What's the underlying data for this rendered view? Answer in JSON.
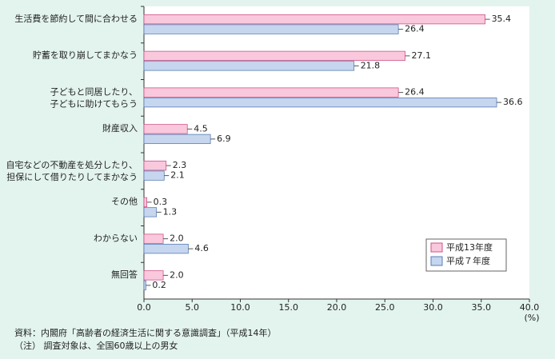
{
  "chart_data": {
    "type": "hbar",
    "categories": [
      "生活費を節約して間に合わせる",
      "貯蓄を取り崩してまかなう",
      [
        "子どもと同居したり、",
        "子どもに助けてもらう"
      ],
      "財産収入",
      [
        "自宅などの不動産を処分したり、",
        "担保にして借りたりしてまかなう"
      ],
      "その他",
      "わからない",
      "無回答"
    ],
    "series": [
      {
        "name": "平成13年度",
        "color": "#fac8dc",
        "edge": "#cc5588",
        "values": [
          35.4,
          27.1,
          26.4,
          4.5,
          2.3,
          0.3,
          2.0,
          2.0
        ],
        "value_labels": [
          "35.4",
          "27.1",
          "26.4",
          "4.5",
          "2.3",
          "0.3",
          "2.0",
          "2.0"
        ]
      },
      {
        "name": "平成７年度",
        "color": "#c6d6ee",
        "edge": "#5a7fb5",
        "values": [
          26.4,
          21.8,
          36.6,
          6.9,
          2.1,
          1.3,
          4.6,
          0.2
        ],
        "value_labels": [
          "26.4",
          "21.8",
          "36.6",
          "6.9",
          "2.1",
          "1.3",
          "4.6",
          "0.2"
        ]
      }
    ],
    "xlim": [
      0,
      40
    ],
    "xticks": [
      {
        "value": 0,
        "label": "0.0"
      },
      {
        "value": 5,
        "label": "5.0"
      },
      {
        "value": 10,
        "label": "10.0"
      },
      {
        "value": 15,
        "label": "15.0"
      },
      {
        "value": 20,
        "label": "20.0"
      },
      {
        "value": 25,
        "label": "25.0"
      },
      {
        "value": 30,
        "label": "30.0"
      },
      {
        "value": 35,
        "label": "35.0"
      },
      {
        "value": 40,
        "label": "40.0"
      }
    ],
    "x_unit": "(%)",
    "legend": "lower-right",
    "notes": [
      "資料：内閣府「高齢者の経済生活に関する意識調査」（平成14年）",
      "（注） 調査対象は、全国60歳以上の男女"
    ]
  }
}
